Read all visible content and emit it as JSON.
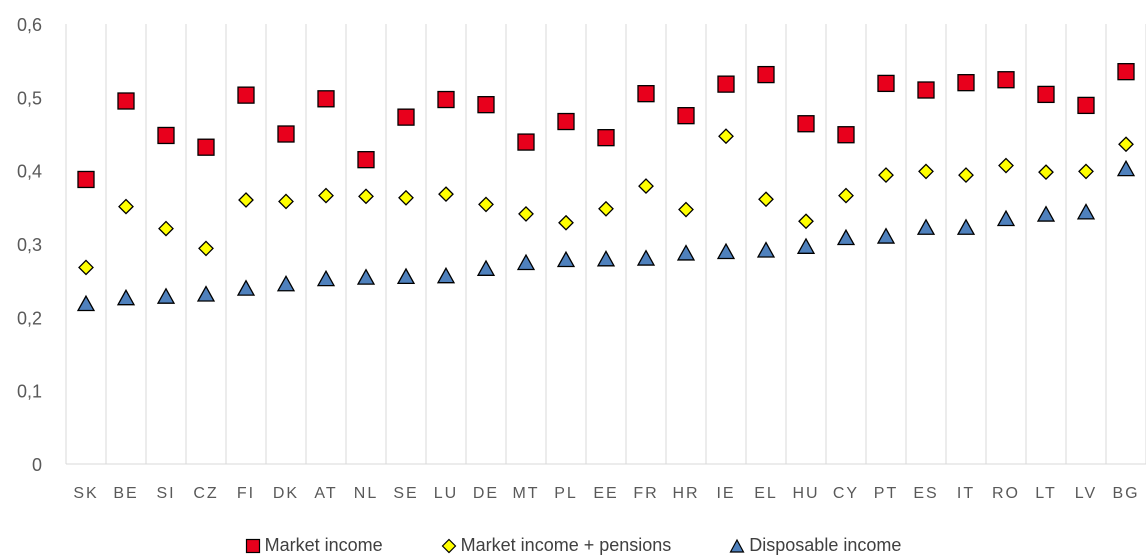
{
  "chart_data": {
    "type": "scatter",
    "categories": [
      "SK",
      "BE",
      "SI",
      "CZ",
      "FI",
      "DK",
      "AT",
      "NL",
      "SE",
      "LU",
      "DE",
      "MT",
      "PL",
      "EE",
      "FR",
      "HR",
      "IE",
      "EL",
      "HU",
      "CY",
      "PT",
      "ES",
      "IT",
      "RO",
      "LT",
      "LV",
      "BG"
    ],
    "y_ticks": [
      "0",
      "0,1",
      "0,2",
      "0,3",
      "0,4",
      "0,5",
      "0,6"
    ],
    "ylim": [
      0,
      0.6
    ],
    "grid": "vertical category lines",
    "legend_position": "bottom",
    "series": [
      {
        "name": "Market income",
        "marker": "square",
        "color": "#e8001c",
        "values": [
          0.388,
          0.495,
          0.448,
          0.432,
          0.503,
          0.45,
          0.498,
          0.415,
          0.473,
          0.497,
          0.49,
          0.439,
          0.467,
          0.445,
          0.505,
          0.475,
          0.518,
          0.531,
          0.464,
          0.449,
          0.519,
          0.51,
          0.52,
          0.524,
          0.504,
          0.489,
          0.535
        ]
      },
      {
        "name": "Market income + pensions",
        "marker": "diamond",
        "color": "#ffff00",
        "values": [
          0.268,
          0.351,
          0.321,
          0.294,
          0.36,
          0.358,
          0.366,
          0.365,
          0.363,
          0.368,
          0.354,
          0.341,
          0.329,
          0.348,
          0.379,
          0.347,
          0.447,
          0.361,
          0.331,
          0.366,
          0.394,
          0.399,
          0.394,
          0.407,
          0.398,
          0.399,
          0.436
        ]
      },
      {
        "name": "Disposable income",
        "marker": "triangle",
        "color": "#4f81bd",
        "values": [
          0.218,
          0.226,
          0.228,
          0.231,
          0.239,
          0.245,
          0.252,
          0.254,
          0.255,
          0.256,
          0.266,
          0.274,
          0.278,
          0.279,
          0.28,
          0.287,
          0.289,
          0.291,
          0.296,
          0.308,
          0.31,
          0.322,
          0.322,
          0.334,
          0.34,
          0.343,
          0.402
        ]
      }
    ]
  }
}
